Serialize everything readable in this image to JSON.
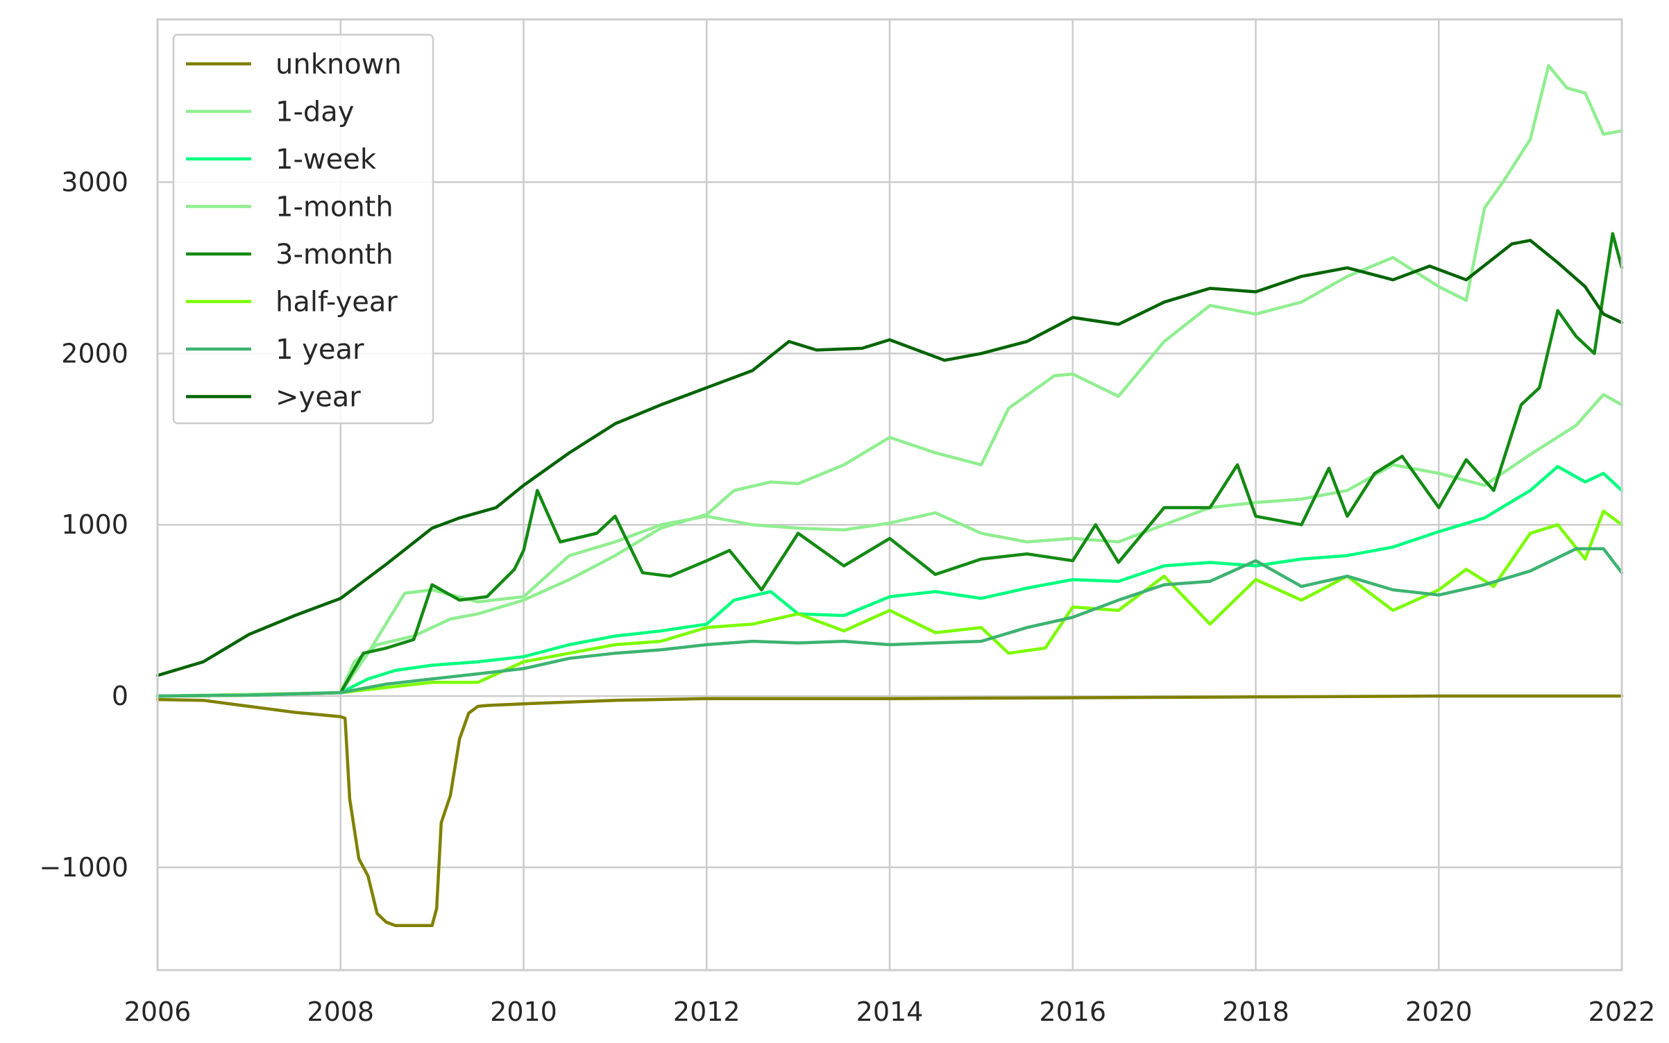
{
  "chart_data": {
    "type": "line",
    "title": "",
    "xlabel": "",
    "ylabel": "",
    "xlim": [
      2006,
      2022
    ],
    "ylim": [
      -1600,
      3950
    ],
    "x_ticks": [
      2006,
      2008,
      2010,
      2012,
      2014,
      2016,
      2018,
      2020,
      2022
    ],
    "x_tick_labels": [
      "2006",
      "2008",
      "2010",
      "2012",
      "2014",
      "2016",
      "2018",
      "2020",
      "2022"
    ],
    "y_ticks": [
      -1000,
      0,
      1000,
      2000,
      3000
    ],
    "y_tick_labels": [
      "−1000",
      "0",
      "1000",
      "2000",
      "3000"
    ],
    "grid": true,
    "legend_position": "top-left",
    "series": [
      {
        "name": "unknown",
        "color": "#808000",
        "x": [
          2006.0,
          2006.5,
          2007.0,
          2007.5,
          2008.0,
          2008.05,
          2008.1,
          2008.2,
          2008.3,
          2008.4,
          2008.5,
          2008.6,
          2008.75,
          2009.0,
          2009.05,
          2009.1,
          2009.2,
          2009.3,
          2009.4,
          2009.5,
          2009.6,
          2010.0,
          2011.0,
          2012.0,
          2014.0,
          2016.0,
          2018.0,
          2020.0,
          2022.0
        ],
        "y": [
          -20,
          -25,
          -60,
          -95,
          -120,
          -130,
          -600,
          -950,
          -1050,
          -1270,
          -1320,
          -1340,
          -1340,
          -1340,
          -1240,
          -740,
          -580,
          -250,
          -100,
          -60,
          -55,
          -45,
          -25,
          -15,
          -15,
          -10,
          -5,
          0,
          0
        ]
      },
      {
        "name": "1-day",
        "color": "#90ee90",
        "x": [
          2006.0,
          2007.0,
          2008.0,
          2008.15,
          2008.4,
          2008.8,
          2009.0,
          2009.2,
          2009.5,
          2010.0,
          2010.5,
          2011.0,
          2011.5,
          2012.0,
          2012.3,
          2012.7,
          2013.0,
          2013.5,
          2014.0,
          2014.5,
          2015.0,
          2015.3,
          2015.8,
          2016.0,
          2016.5,
          2017.0,
          2017.5,
          2018.0,
          2018.5,
          2019.0,
          2019.5,
          2020.0,
          2020.3,
          2020.5,
          2020.7,
          2021.0,
          2021.2,
          2021.4,
          2021.6,
          2021.8,
          2022.0
        ],
        "y": [
          0,
          10,
          20,
          200,
          300,
          350,
          400,
          450,
          480,
          560,
          680,
          820,
          980,
          1060,
          1200,
          1250,
          1240,
          1350,
          1510,
          1420,
          1350,
          1680,
          1870,
          1880,
          1750,
          2070,
          2280,
          2230,
          2300,
          2450,
          2560,
          2390,
          2310,
          2850,
          3000,
          3250,
          3680,
          3550,
          3520,
          3280,
          3300
        ]
      },
      {
        "name": "1-week",
        "color": "#00ff7f",
        "x": [
          2006.0,
          2007.0,
          2008.0,
          2008.3,
          2008.6,
          2009.0,
          2009.5,
          2010.0,
          2010.5,
          2011.0,
          2011.5,
          2012.0,
          2012.3,
          2012.7,
          2013.0,
          2013.5,
          2014.0,
          2014.5,
          2015.0,
          2015.5,
          2016.0,
          2016.5,
          2017.0,
          2017.5,
          2018.0,
          2018.5,
          2019.0,
          2019.5,
          2020.0,
          2020.5,
          2021.0,
          2021.3,
          2021.6,
          2021.8,
          2022.0
        ],
        "y": [
          0,
          5,
          20,
          100,
          150,
          180,
          200,
          230,
          300,
          350,
          380,
          420,
          560,
          610,
          480,
          470,
          580,
          610,
          570,
          630,
          680,
          670,
          760,
          780,
          760,
          800,
          820,
          870,
          960,
          1040,
          1200,
          1340,
          1250,
          1300,
          1200
        ]
      },
      {
        "name": "1-month",
        "color": "#90ee90",
        "x": [
          2006.0,
          2007.0,
          2008.0,
          2008.3,
          2008.7,
          2009.0,
          2009.5,
          2010.0,
          2010.5,
          2011.0,
          2011.5,
          2012.0,
          2012.5,
          2013.0,
          2013.5,
          2014.0,
          2014.5,
          2015.0,
          2015.5,
          2016.0,
          2016.5,
          2017.0,
          2017.5,
          2018.0,
          2018.5,
          2019.0,
          2019.5,
          2020.0,
          2020.5,
          2021.0,
          2021.5,
          2021.8,
          2022.0
        ],
        "y": [
          0,
          5,
          20,
          250,
          600,
          620,
          550,
          580,
          820,
          900,
          1000,
          1050,
          1000,
          980,
          970,
          1010,
          1070,
          950,
          900,
          920,
          900,
          1000,
          1100,
          1130,
          1150,
          1200,
          1350,
          1300,
          1230,
          1410,
          1580,
          1760,
          1700
        ]
      },
      {
        "name": "3-month",
        "color": "#138a13",
        "x": [
          2006.0,
          2007.0,
          2008.0,
          2008.25,
          2008.5,
          2008.8,
          2009.0,
          2009.3,
          2009.6,
          2009.9,
          2010.0,
          2010.15,
          2010.4,
          2010.8,
          2011.0,
          2011.3,
          2011.6,
          2012.0,
          2012.25,
          2012.6,
          2013.0,
          2013.5,
          2014.0,
          2014.5,
          2015.0,
          2015.5,
          2016.0,
          2016.25,
          2016.5,
          2017.0,
          2017.5,
          2017.8,
          2018.0,
          2018.5,
          2018.8,
          2019.0,
          2019.3,
          2019.6,
          2020.0,
          2020.3,
          2020.6,
          2020.9,
          2021.1,
          2021.3,
          2021.5,
          2021.7,
          2021.9,
          2022.0
        ],
        "y": [
          0,
          5,
          20,
          250,
          280,
          330,
          650,
          560,
          580,
          740,
          850,
          1200,
          900,
          950,
          1050,
          720,
          700,
          790,
          850,
          620,
          950,
          760,
          920,
          710,
          800,
          830,
          790,
          1000,
          780,
          1100,
          1100,
          1350,
          1050,
          1000,
          1330,
          1050,
          1300,
          1400,
          1100,
          1380,
          1200,
          1700,
          1800,
          2250,
          2100,
          2000,
          2700,
          2500
        ]
      },
      {
        "name": "half-year",
        "color": "#7cfc00",
        "x": [
          2006.0,
          2007.0,
          2008.0,
          2008.5,
          2009.0,
          2009.5,
          2010.0,
          2010.5,
          2011.0,
          2011.5,
          2012.0,
          2012.5,
          2013.0,
          2013.5,
          2014.0,
          2014.5,
          2015.0,
          2015.3,
          2015.7,
          2016.0,
          2016.5,
          2017.0,
          2017.5,
          2018.0,
          2018.5,
          2019.0,
          2019.5,
          2020.0,
          2020.3,
          2020.6,
          2021.0,
          2021.3,
          2021.6,
          2021.8,
          2022.0
        ],
        "y": [
          0,
          5,
          20,
          50,
          80,
          80,
          200,
          250,
          300,
          320,
          400,
          420,
          480,
          380,
          500,
          370,
          400,
          250,
          280,
          520,
          500,
          700,
          420,
          680,
          560,
          700,
          500,
          620,
          740,
          640,
          950,
          1000,
          800,
          1080,
          1000
        ]
      },
      {
        "name": "1 year",
        "color": "#3cb371",
        "x": [
          2006.0,
          2007.0,
          2008.0,
          2008.5,
          2009.0,
          2009.5,
          2010.0,
          2010.5,
          2011.0,
          2011.5,
          2012.0,
          2012.5,
          2013.0,
          2013.5,
          2014.0,
          2014.5,
          2015.0,
          2015.5,
          2016.0,
          2016.5,
          2017.0,
          2017.5,
          2018.0,
          2018.5,
          2019.0,
          2019.5,
          2020.0,
          2020.5,
          2021.0,
          2021.5,
          2021.8,
          2022.0
        ],
        "y": [
          0,
          5,
          20,
          70,
          100,
          130,
          160,
          220,
          250,
          270,
          300,
          320,
          310,
          320,
          300,
          310,
          320,
          400,
          460,
          560,
          650,
          670,
          790,
          640,
          700,
          620,
          590,
          650,
          730,
          860,
          860,
          720
        ]
      },
      {
        "name": ">year",
        "color": "#006400",
        "x": [
          2006.0,
          2006.5,
          2007.0,
          2007.5,
          2008.0,
          2008.5,
          2009.0,
          2009.3,
          2009.7,
          2010.0,
          2010.5,
          2011.0,
          2011.5,
          2012.0,
          2012.5,
          2012.9,
          2013.2,
          2013.7,
          2014.0,
          2014.6,
          2015.0,
          2015.5,
          2016.0,
          2016.5,
          2017.0,
          2017.5,
          2018.0,
          2018.5,
          2019.0,
          2019.5,
          2019.9,
          2020.3,
          2020.8,
          2021.0,
          2021.3,
          2021.6,
          2021.8,
          2022.0
        ],
        "y": [
          120,
          200,
          360,
          470,
          570,
          770,
          980,
          1040,
          1100,
          1230,
          1420,
          1590,
          1700,
          1800,
          1900,
          2070,
          2020,
          2030,
          2080,
          1960,
          2000,
          2070,
          2210,
          2170,
          2300,
          2380,
          2360,
          2450,
          2500,
          2430,
          2510,
          2430,
          2640,
          2660,
          2530,
          2390,
          2230,
          2180
        ]
      }
    ]
  }
}
